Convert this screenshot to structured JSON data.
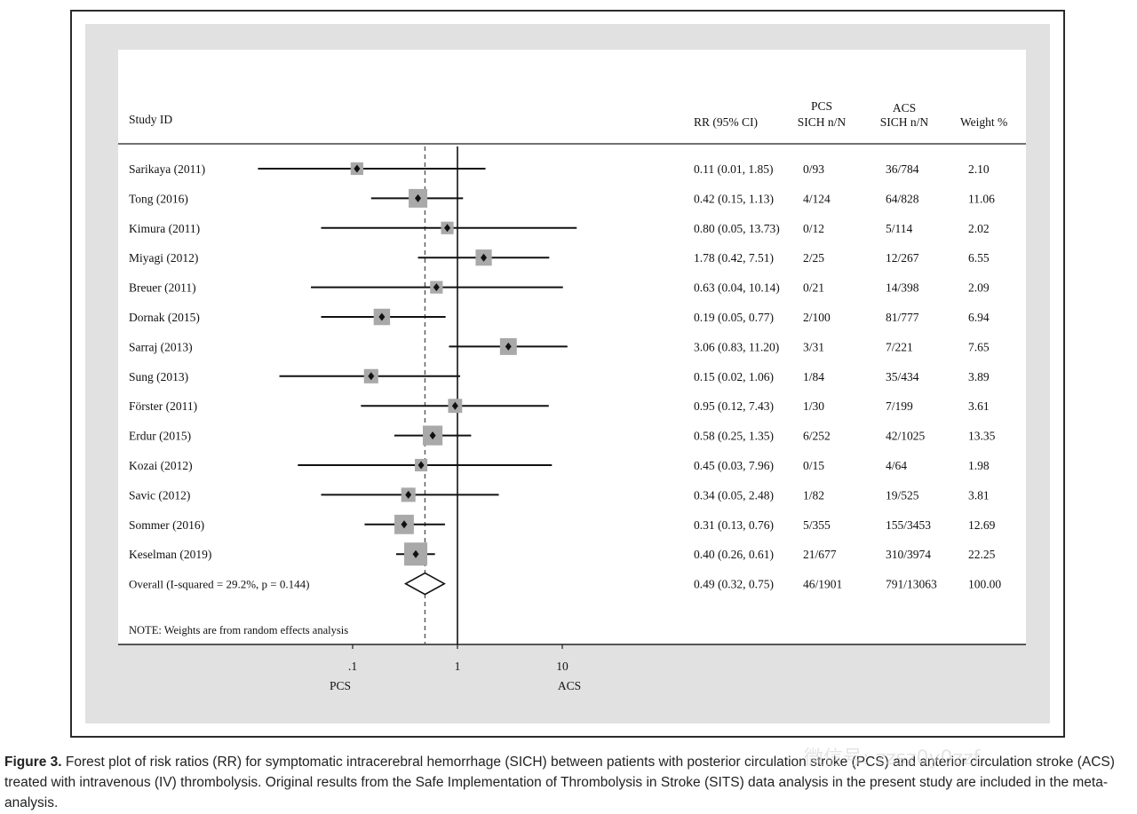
{
  "chart_data": {
    "type": "forest",
    "scale": "log",
    "xlim": [
      0.0125,
      20
    ],
    "xticks": [
      0.1,
      1,
      10
    ],
    "xtick_labels": [
      ".1",
      "1",
      "10"
    ],
    "favours_left": "PCS",
    "favours_right": "ACS",
    "reference_line": 1,
    "overall_line": 0.49,
    "columns": {
      "study": "Study  ID",
      "rr": "RR (95% CI)",
      "pcs_top": "PCS",
      "pcs_bottom": "SICH n/N",
      "acs_top": "ACS",
      "acs_bottom": "SICH n/N",
      "weight": "Weight %"
    },
    "studies": [
      {
        "label": "Sarikaya (2011)",
        "rr": 0.11,
        "lo": 0.01,
        "hi": 1.85,
        "rr_text": "0.11 (0.01, 1.85)",
        "pcs": "0/93",
        "acs": "36/784",
        "weight": 2.1,
        "weight_text": "2.10"
      },
      {
        "label": "Tong (2016)",
        "rr": 0.42,
        "lo": 0.15,
        "hi": 1.13,
        "rr_text": "0.42 (0.15, 1.13)",
        "pcs": "4/124",
        "acs": "64/828",
        "weight": 11.06,
        "weight_text": "11.06"
      },
      {
        "label": "Kimura (2011)",
        "rr": 0.8,
        "lo": 0.05,
        "hi": 13.73,
        "rr_text": "0.80 (0.05, 13.73)",
        "pcs": "0/12",
        "acs": "5/114",
        "weight": 2.02,
        "weight_text": "2.02"
      },
      {
        "label": "Miyagi (2012)",
        "rr": 1.78,
        "lo": 0.42,
        "hi": 7.51,
        "rr_text": "1.78 (0.42, 7.51)",
        "pcs": "2/25",
        "acs": "12/267",
        "weight": 6.55,
        "weight_text": "6.55"
      },
      {
        "label": "Breuer (2011)",
        "rr": 0.63,
        "lo": 0.04,
        "hi": 10.14,
        "rr_text": "0.63 (0.04, 10.14)",
        "pcs": "0/21",
        "acs": "14/398",
        "weight": 2.09,
        "weight_text": "2.09"
      },
      {
        "label": "Dornak (2015)",
        "rr": 0.19,
        "lo": 0.05,
        "hi": 0.77,
        "rr_text": "0.19 (0.05, 0.77)",
        "pcs": "2/100",
        "acs": "81/777",
        "weight": 6.94,
        "weight_text": "6.94"
      },
      {
        "label": "Sarraj (2013)",
        "rr": 3.06,
        "lo": 0.83,
        "hi": 11.2,
        "rr_text": "3.06 (0.83, 11.20)",
        "pcs": "3/31",
        "acs": "7/221",
        "weight": 7.65,
        "weight_text": "7.65"
      },
      {
        "label": "Sung (2013)",
        "rr": 0.15,
        "lo": 0.02,
        "hi": 1.06,
        "rr_text": "0.15 (0.02, 1.06)",
        "pcs": "1/84",
        "acs": "35/434",
        "weight": 3.89,
        "weight_text": "3.89"
      },
      {
        "label": "Förster (2011)",
        "rr": 0.95,
        "lo": 0.12,
        "hi": 7.43,
        "rr_text": "0.95 (0.12, 7.43)",
        "pcs": "1/30",
        "acs": "7/199",
        "weight": 3.61,
        "weight_text": "3.61"
      },
      {
        "label": "Erdur (2015)",
        "rr": 0.58,
        "lo": 0.25,
        "hi": 1.35,
        "rr_text": "0.58 (0.25, 1.35)",
        "pcs": "6/252",
        "acs": "42/1025",
        "weight": 13.35,
        "weight_text": "13.35"
      },
      {
        "label": "Kozai (2012)",
        "rr": 0.45,
        "lo": 0.03,
        "hi": 7.96,
        "rr_text": "0.45 (0.03, 7.96)",
        "pcs": "0/15",
        "acs": "4/64",
        "weight": 1.98,
        "weight_text": "1.98"
      },
      {
        "label": "Savic (2012)",
        "rr": 0.34,
        "lo": 0.05,
        "hi": 2.48,
        "rr_text": "0.34 (0.05, 2.48)",
        "pcs": "1/82",
        "acs": "19/525",
        "weight": 3.81,
        "weight_text": "3.81"
      },
      {
        "label": "Sommer (2016)",
        "rr": 0.31,
        "lo": 0.13,
        "hi": 0.76,
        "rr_text": "0.31 (0.13, 0.76)",
        "pcs": "5/355",
        "acs": "155/3453",
        "weight": 12.69,
        "weight_text": "12.69"
      },
      {
        "label": "Keselman (2019)",
        "rr": 0.4,
        "lo": 0.26,
        "hi": 0.61,
        "rr_text": "0.40 (0.26, 0.61)",
        "pcs": "21/677",
        "acs": "310/3974",
        "weight": 22.25,
        "weight_text": "22.25"
      }
    ],
    "overall": {
      "label": "Overall  (I-squared = 29.2%, p = 0.144)",
      "rr": 0.49,
      "lo": 0.32,
      "hi": 0.75,
      "rr_text": "0.49 (0.32, 0.75)",
      "pcs": "46/1901",
      "acs": "791/13063",
      "weight_text": "100.00"
    },
    "note": "NOTE: Weights are from random effects analysis"
  },
  "caption": {
    "label": "Figure 3.",
    "text": " Forest plot of risk ratios (RR) for symptomatic intracerebral hemorrhage (SICH) between patients with posterior circulation stroke (PCS) and anterior circulation stroke (ACS) treated with intravenous (IV) thrombolysis. Original results from the Safe Implementation of Thrombolysis in Stroke (SITS) data analysis in the present study are included in the meta-analysis."
  },
  "watermark": "微信号: zzsz0y0zzf"
}
